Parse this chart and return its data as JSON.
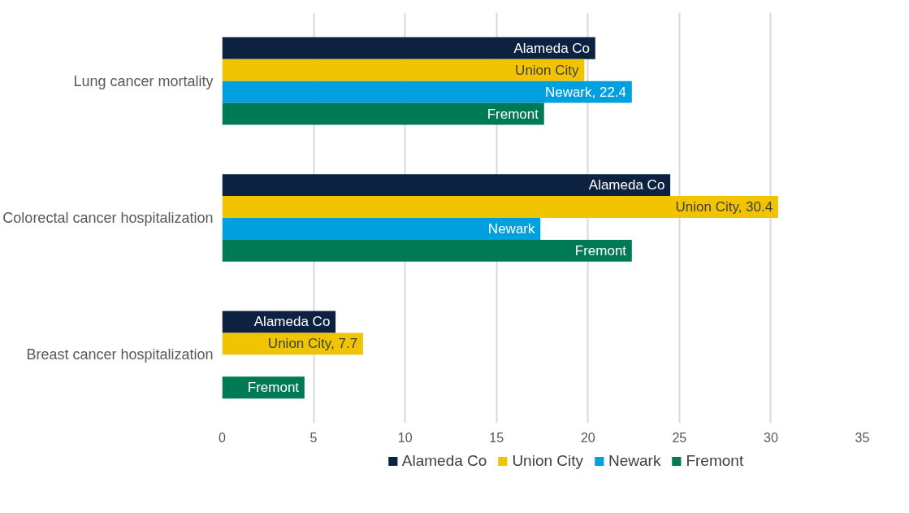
{
  "chart_data": {
    "type": "bar",
    "orientation": "horizontal",
    "categories": [
      "Lung cancer mortality",
      "Colorectal cancer hospitalization",
      "Breast cancer hospitalization"
    ],
    "series": [
      {
        "name": "Alameda Co",
        "color": "#0d2240",
        "values": [
          20.4,
          24.5,
          6.2
        ],
        "value_labels": [
          "Alameda Co",
          "Alameda Co",
          "Alameda Co"
        ]
      },
      {
        "name": "Union City",
        "color": "#f0c400",
        "values": [
          19.8,
          30.4,
          7.7
        ],
        "value_labels": [
          "Union City",
          "Union City, 30.4",
          "Union City, 7.7"
        ]
      },
      {
        "name": "Newark",
        "color": "#00a0e0",
        "values": [
          22.4,
          17.4,
          null
        ],
        "value_labels": [
          "Newark, 22.4",
          "Newark",
          null
        ]
      },
      {
        "name": "Fremont",
        "color": "#007a55",
        "values": [
          17.6,
          22.4,
          4.5
        ],
        "value_labels": [
          "Fremont",
          "Fremont",
          "Fremont"
        ]
      }
    ],
    "xlim": [
      0,
      35
    ],
    "xticks": [
      0,
      5,
      10,
      15,
      20,
      25,
      30,
      35
    ],
    "grid": "x",
    "legend": "bottom"
  }
}
